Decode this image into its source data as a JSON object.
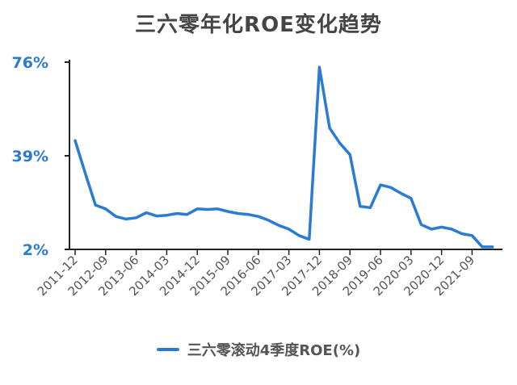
{
  "chart_data": {
    "type": "line",
    "title": "三六零年化ROE变化趋势",
    "xlabel": "",
    "ylabel": "",
    "y_tick_labels": [
      "76%",
      "39%",
      "2%"
    ],
    "y_ticks": [
      76,
      39,
      2
    ],
    "ylim": [
      2,
      76
    ],
    "x_tick_labels": [
      "2011-12",
      "2012-09",
      "2013-06",
      "2014-03",
      "2014-12",
      "2015-09",
      "2016-06",
      "2017-03",
      "2017-12",
      "2018-09",
      "2019-06",
      "2020-03",
      "2020-12",
      "2021-09"
    ],
    "grid": false,
    "legend_position": "bottom",
    "colors": {
      "line": "#2b7bd4",
      "axis": "#222222",
      "tick_label": "#2b7bd4"
    },
    "x": [
      "2011-12",
      "2012-03",
      "2012-06",
      "2012-09",
      "2012-12",
      "2013-03",
      "2013-06",
      "2013-09",
      "2013-12",
      "2014-03",
      "2014-06",
      "2014-09",
      "2014-12",
      "2015-03",
      "2015-06",
      "2015-09",
      "2015-12",
      "2016-03",
      "2016-06",
      "2016-09",
      "2016-12",
      "2017-03",
      "2017-06",
      "2017-09",
      "2017-12",
      "2018-03",
      "2018-06",
      "2018-09",
      "2018-12",
      "2019-03",
      "2019-06",
      "2019-09",
      "2019-12",
      "2020-03",
      "2020-06",
      "2020-09",
      "2020-12",
      "2021-03",
      "2021-06",
      "2021-09",
      "2021-12",
      "2022-03"
    ],
    "series": [
      {
        "name": "三六零滚动4季度ROE(%)",
        "values": [
          45,
          32,
          19.5,
          18,
          15,
          14,
          14.5,
          16.5,
          15.2,
          15.5,
          16.2,
          15.8,
          18,
          17.8,
          18,
          17,
          16.2,
          15.8,
          15,
          13.5,
          11.5,
          10,
          7.5,
          6,
          74,
          50,
          44,
          39.5,
          19,
          18.5,
          27.5,
          26.5,
          24.2,
          22.2,
          11.8,
          10,
          10.8,
          10,
          8.2,
          7.5,
          3,
          3
        ]
      }
    ]
  }
}
